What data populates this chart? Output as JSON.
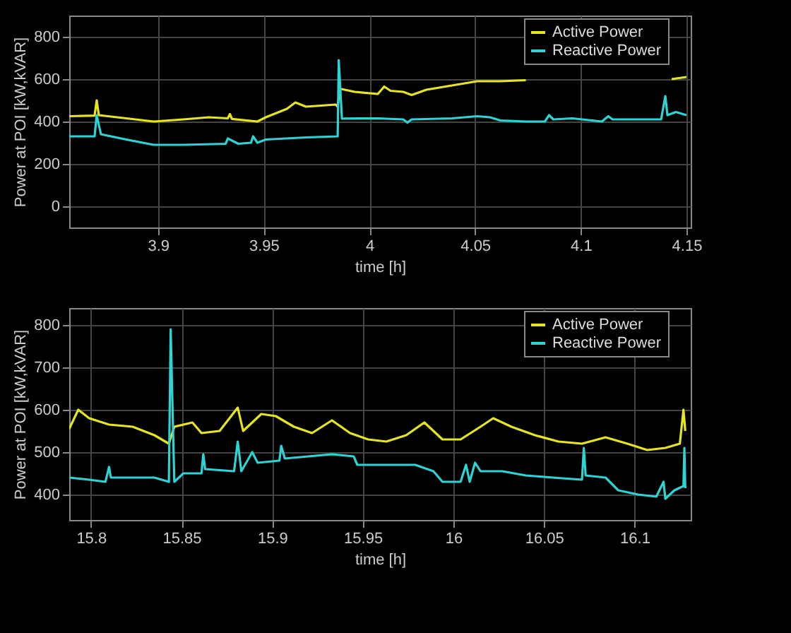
{
  "chart_data": [
    {
      "type": "line",
      "xlabel": "time [h]",
      "ylabel": "Power at POI [kW,kVAR]",
      "xlim": [
        3.858,
        4.152
      ],
      "ylim": [
        -100,
        900
      ],
      "xticks": [
        3.9,
        3.95,
        4,
        4.05,
        4.1,
        4.15
      ],
      "yticks": [
        0,
        200,
        400,
        600,
        800
      ],
      "grid": true,
      "legend": "top right",
      "marker": "none",
      "line_style": "solid",
      "series": [
        {
          "name": "Active Power",
          "color": "#e6e61e",
          "x": [
            3.858,
            3.87,
            3.871,
            3.872,
            3.885,
            3.898,
            3.912,
            3.924,
            3.933,
            3.934,
            3.935,
            3.947,
            3.951,
            3.961,
            3.965,
            3.97,
            3.984,
            3.985,
            3.986,
            3.993,
            4.004,
            4.007,
            4.01,
            4.016,
            4.02,
            4.027,
            4.039,
            4.051,
            4.062,
            4.074,
            4.08,
            4.142,
            4.143,
            4.15
          ],
          "values": [
            425,
            428,
            500,
            430,
            415,
            400,
            410,
            420,
            415,
            435,
            412,
            400,
            420,
            460,
            490,
            470,
            480,
            470,
            555,
            540,
            530,
            565,
            545,
            540,
            525,
            550,
            570,
            590,
            590,
            595,
            null,
            null,
            600,
            610
          ]
        },
        {
          "name": "Reactive Power",
          "color": "#2ed3d3",
          "x": [
            3.858,
            3.87,
            3.871,
            3.873,
            3.885,
            3.898,
            3.912,
            3.932,
            3.933,
            3.938,
            3.944,
            3.945,
            3.947,
            3.951,
            3.97,
            3.985,
            3.9855,
            3.987,
            4.004,
            4.016,
            4.018,
            4.02,
            4.039,
            4.051,
            4.057,
            4.062,
            4.074,
            4.083,
            4.085,
            4.087,
            4.096,
            4.11,
            4.113,
            4.115,
            4.138,
            4.14,
            4.141,
            4.145,
            4.15
          ],
          "values": [
            330,
            330,
            430,
            340,
            315,
            290,
            290,
            295,
            320,
            295,
            300,
            330,
            300,
            315,
            325,
            330,
            690,
            414,
            415,
            410,
            395,
            410,
            415,
            425,
            420,
            405,
            400,
            400,
            430,
            410,
            415,
            400,
            425,
            410,
            410,
            520,
            430,
            445,
            430
          ]
        }
      ]
    },
    {
      "type": "line",
      "xlabel": "time [h]",
      "ylabel": "Power at POI [kW,kVAR]",
      "xlim": [
        15.788,
        16.131
      ],
      "ylim": [
        340,
        840
      ],
      "xticks": [
        15.8,
        15.85,
        15.9,
        15.95,
        16,
        16.05,
        16.1
      ],
      "yticks": [
        400,
        500,
        600,
        700,
        800
      ],
      "grid": true,
      "legend": "top right",
      "marker": "none",
      "line_style": "solid",
      "series": [
        {
          "name": "Active Power",
          "color": "#e6e61e",
          "x": [
            15.788,
            15.793,
            15.799,
            15.81,
            15.823,
            15.835,
            15.843,
            15.846,
            15.856,
            15.861,
            15.871,
            15.881,
            15.884,
            15.894,
            15.902,
            15.912,
            15.922,
            15.933,
            15.943,
            15.953,
            15.963,
            15.974,
            15.984,
            15.994,
            16.004,
            16.015,
            16.022,
            16.032,
            16.045,
            16.058,
            16.071,
            16.084,
            16.096,
            16.107,
            16.117,
            16.125,
            16.127,
            16.128
          ],
          "values": [
            555,
            600,
            580,
            565,
            560,
            540,
            520,
            560,
            570,
            545,
            550,
            605,
            550,
            590,
            585,
            560,
            545,
            575,
            545,
            530,
            525,
            540,
            570,
            530,
            530,
            560,
            580,
            560,
            540,
            525,
            520,
            535,
            520,
            505,
            510,
            520,
            600,
            550
          ]
        },
        {
          "name": "Reactive Power",
          "color": "#2ed3d3",
          "x": [
            15.788,
            15.799,
            15.808,
            15.81,
            15.811,
            15.835,
            15.843,
            15.844,
            15.846,
            15.851,
            15.861,
            15.862,
            15.863,
            15.879,
            15.881,
            15.883,
            15.889,
            15.892,
            15.904,
            15.905,
            15.907,
            15.933,
            15.945,
            15.947,
            15.979,
            15.989,
            15.994,
            16.004,
            16.007,
            16.009,
            16.012,
            16.015,
            16.027,
            16.04,
            16.055,
            16.071,
            16.072,
            16.073,
            16.084,
            16.091,
            16.102,
            16.112,
            16.116,
            16.117,
            16.122,
            16.127,
            16.1275,
            16.128
          ],
          "values": [
            440,
            435,
            430,
            465,
            440,
            440,
            430,
            790,
            430,
            450,
            450,
            495,
            460,
            455,
            525,
            455,
            500,
            475,
            480,
            515,
            485,
            495,
            490,
            470,
            470,
            455,
            430,
            430,
            470,
            430,
            475,
            455,
            455,
            445,
            440,
            435,
            510,
            445,
            440,
            410,
            400,
            395,
            430,
            390,
            410,
            420,
            510,
            415
          ]
        }
      ]
    }
  ]
}
